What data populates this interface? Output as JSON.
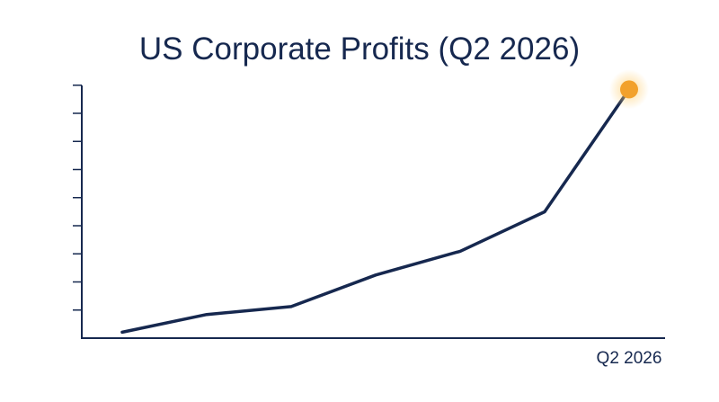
{
  "chart_data": {
    "type": "line",
    "title": "US Corporate Profits (Q2 2026)",
    "xlabel": "",
    "ylabel": "",
    "x_tick_labels_shown": [
      "Q2 2026"
    ],
    "x": [
      1,
      2,
      3,
      4,
      5,
      6,
      7
    ],
    "values": [
      0.3,
      1.2,
      1.6,
      3.2,
      4.4,
      6.4,
      12.6
    ],
    "ylim": [
      0,
      12.8
    ],
    "y_ticks_count": 9,
    "y_tick_labels": [],
    "highlight_last_point": true,
    "grid": false,
    "colors": {
      "line": "#16284f",
      "axis": "#16284f",
      "title": "#16284f",
      "highlight": "#f2a12c",
      "highlight_glow": "#ffd27a"
    }
  }
}
